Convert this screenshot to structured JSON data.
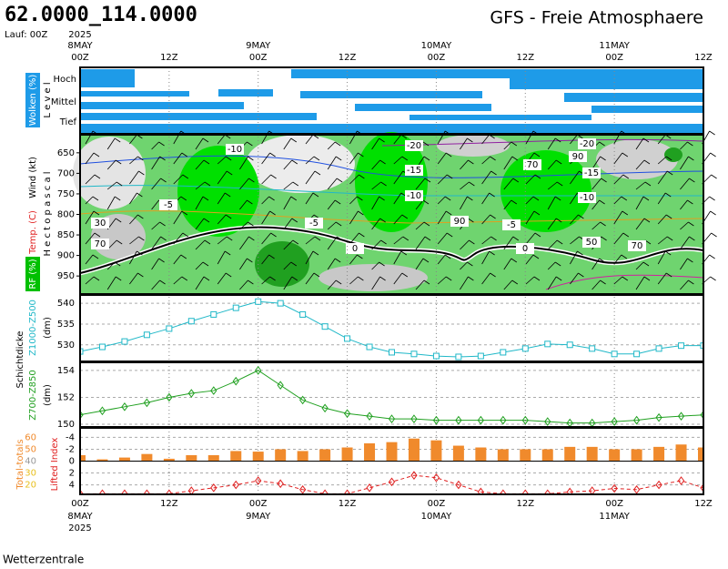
{
  "header": {
    "location": "62.0000_114.0000",
    "run": "Lauf: 00Z",
    "title": "GFS - Freie Atmosphaere"
  },
  "time_axis": {
    "xlim": [
      0,
      84
    ],
    "xticks": [
      {
        "value": 0,
        "label": "00Z"
      },
      {
        "value": 12,
        "label": "12Z"
      },
      {
        "value": 24,
        "label": "00Z"
      },
      {
        "value": 36,
        "label": "12Z"
      },
      {
        "value": 48,
        "label": "00Z"
      },
      {
        "value": 60,
        "label": "12Z"
      },
      {
        "value": 72,
        "label": "00Z"
      },
      {
        "value": 84,
        "label": "12Z"
      }
    ],
    "dates": [
      {
        "value": 0,
        "label": "8MAY"
      },
      {
        "value": 24,
        "label": "9MAY"
      },
      {
        "value": 48,
        "label": "10MAY"
      },
      {
        "value": 72,
        "label": "11MAY"
      }
    ],
    "year": "2025"
  },
  "clouds": {
    "label": "Wolken (%)",
    "axis_label": "L e v e l",
    "levels": [
      "Hoch",
      "Mittel",
      "Tief"
    ]
  },
  "wind_panel": {
    "labels": [
      "Wind (kt)",
      "Temp. (C)",
      "RF (%)"
    ],
    "axis_label": "H e c t o p a s c a l",
    "ylim": [
      994,
      606
    ],
    "yticks": [
      650,
      700,
      750,
      800,
      850,
      900,
      950
    ],
    "contour_labels": [
      -10,
      -20,
      -15,
      -10,
      -5,
      0,
      90,
      70,
      30,
      70,
      -20,
      -15,
      -10,
      -5,
      0,
      50,
      70,
      90,
      -5
    ]
  },
  "group_label": "Schichtdicke",
  "chart_data": [
    {
      "type": "line",
      "ylabel": "Z1000-Z500",
      "yunit": "(dm)",
      "color": "#20b8c8",
      "marker": "square",
      "x": [
        0,
        3,
        6,
        9,
        12,
        15,
        18,
        21,
        24,
        27,
        30,
        33,
        36,
        39,
        42,
        45,
        48,
        51,
        54,
        57,
        60,
        63,
        66,
        69,
        72,
        75,
        78,
        81,
        84
      ],
      "values": [
        528.4,
        529.5,
        530.8,
        532.4,
        533.9,
        535.7,
        537.3,
        538.9,
        540.4,
        540,
        537.3,
        534.4,
        531.5,
        529.5,
        528.2,
        527.8,
        527.3,
        527.1,
        527.3,
        528.2,
        529.1,
        530.2,
        530,
        529.1,
        527.8,
        527.8,
        529.1,
        529.8,
        529.8
      ],
      "ylim": [
        526,
        542
      ],
      "yticks": [
        530,
        535,
        540
      ],
      "grid": true
    },
    {
      "type": "line",
      "ylabel": "Z700-Z850",
      "yunit": "(dm)",
      "color": "#20a020",
      "marker": "diamond",
      "x": [
        0,
        3,
        6,
        9,
        12,
        15,
        18,
        21,
        24,
        27,
        30,
        33,
        36,
        39,
        42,
        45,
        48,
        51,
        54,
        57,
        60,
        63,
        66,
        69,
        72,
        75,
        78,
        81,
        84
      ],
      "values": [
        150.7,
        151,
        151.3,
        151.6,
        152,
        152.3,
        152.5,
        153.2,
        154,
        152.9,
        151.8,
        151.2,
        150.8,
        150.6,
        150.4,
        150.4,
        150.3,
        150.3,
        150.3,
        150.3,
        150.3,
        150.2,
        150.1,
        150.1,
        150.2,
        150.3,
        150.5,
        150.6,
        150.7
      ],
      "ylim": [
        149.8,
        154.6
      ],
      "yticks": [
        150,
        152,
        154
      ],
      "grid": true
    },
    {
      "type": "bar",
      "x": [
        0,
        3,
        6,
        9,
        12,
        15,
        18,
        21,
        24,
        27,
        30,
        33,
        36,
        39,
        42,
        45,
        48,
        51,
        54,
        57,
        60,
        63,
        66,
        69,
        72,
        75,
        78,
        81,
        84
      ],
      "series": [
        {
          "name": "Total-totals",
          "color": "#f08a2c",
          "values": [
            45,
            41.5,
            43,
            46,
            42,
            45,
            45,
            48.5,
            48,
            50,
            48.5,
            50,
            51.5,
            55,
            56,
            59,
            57.5,
            53,
            51.5,
            50,
            50,
            50,
            52,
            52,
            50,
            50,
            52,
            54,
            51.5
          ]
        },
        {
          "name": "Lifted Index",
          "color": "#e02020",
          "axis": "y2",
          "values": [
            5.5,
            5.5,
            5.5,
            5.5,
            5.5,
            5,
            4.5,
            4,
            3.3,
            3.8,
            4.8,
            5.5,
            5.5,
            4.5,
            3.5,
            2.4,
            2.8,
            4,
            5.2,
            5.5,
            5.5,
            5.5,
            5.2,
            5,
            4.6,
            4.8,
            4,
            3.3,
            4.5
          ]
        }
      ],
      "ylim": [
        12,
        68
      ],
      "yticks": [
        60,
        50,
        40,
        30,
        20
      ],
      "ytick_colors": [
        "#f08a2c",
        "#f08a2c",
        "#999999",
        "#e8c020",
        "#e8c020"
      ],
      "y2lim": [
        5.6,
        -5.6
      ],
      "y2ticks": [
        -4,
        -2,
        0,
        2,
        4
      ],
      "grid": true
    }
  ],
  "footer": "Wetterzentrale"
}
